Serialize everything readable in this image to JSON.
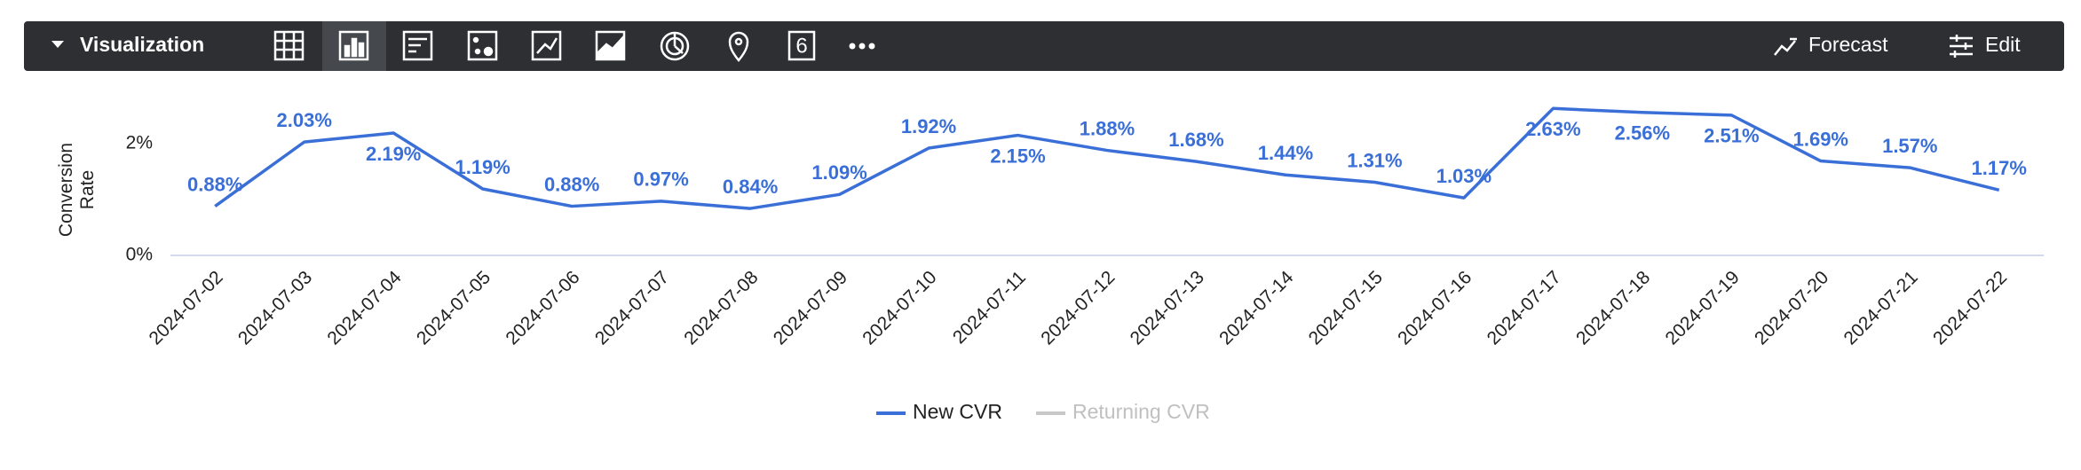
{
  "toolbar": {
    "title": "Visualization",
    "single_value_icon": "6",
    "forecast": "Forecast",
    "edit": "Edit"
  },
  "chart_data": {
    "type": "line",
    "y_label": "Conversion Rate",
    "categories": [
      "2024-07-02",
      "2024-07-03",
      "2024-07-04",
      "2024-07-05",
      "2024-07-06",
      "2024-07-07",
      "2024-07-08",
      "2024-07-09",
      "2024-07-10",
      "2024-07-11",
      "2024-07-12",
      "2024-07-13",
      "2024-07-14",
      "2024-07-15",
      "2024-07-16",
      "2024-07-17",
      "2024-07-18",
      "2024-07-19",
      "2024-07-20",
      "2024-07-21",
      "2024-07-22"
    ],
    "series": [
      {
        "name": "New CVR",
        "color": "#3a6fd8",
        "values": [
          0.88,
          2.03,
          2.19,
          1.19,
          0.88,
          0.97,
          0.84,
          1.09,
          1.92,
          2.15,
          1.88,
          1.68,
          1.44,
          1.31,
          1.03,
          2.63,
          2.56,
          2.51,
          1.69,
          1.57,
          1.17
        ],
        "value_labels": [
          "0.88%",
          "2.03%",
          "2.19%",
          "1.19%",
          "0.88%",
          "0.97%",
          "0.84%",
          "1.09%",
          "1.92%",
          "2.15%",
          "1.88%",
          "1.68%",
          "1.44%",
          "1.31%",
          "1.03%",
          "2.63%",
          "2.56%",
          "2.51%",
          "1.69%",
          "1.57%",
          "1.17%"
        ]
      },
      {
        "name": "Returning CVR",
        "color": "#c8c8c8",
        "hidden": true
      }
    ],
    "ylim": [
      0,
      3
    ],
    "yticks": [
      {
        "value": 0,
        "label": "0%"
      },
      {
        "value": 2,
        "label": "2%"
      }
    ]
  }
}
